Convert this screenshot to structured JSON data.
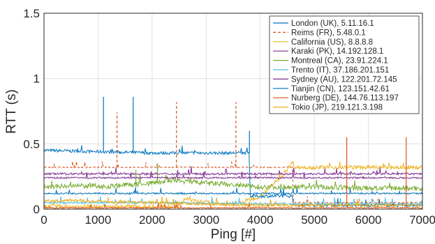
{
  "chart_data": {
    "type": "line",
    "xlabel": "Ping [#]",
    "ylabel": "RTT (s)",
    "xlim": [
      0,
      7000
    ],
    "ylim": [
      0,
      1.5
    ],
    "x_ticks": [
      "0",
      "1000",
      "2000",
      "3000",
      "4000",
      "5000",
      "6000",
      "7000"
    ],
    "y_ticks": [
      "0",
      "0.5",
      "1",
      "1.5"
    ],
    "grid": true,
    "legend_position": "top-right",
    "series": [
      {
        "name": "London (UK), 5.11.16.1",
        "color": "#0072bd",
        "dash": "solid",
        "points": [
          [
            0,
            0.45
          ],
          [
            1000,
            0.44
          ],
          [
            2000,
            0.43
          ],
          [
            3000,
            0.43
          ],
          [
            3800,
            0.43
          ],
          [
            3810,
            0.1
          ],
          [
            4600,
            0.1
          ],
          [
            4610,
            0.03
          ],
          [
            7000,
            0.03
          ]
        ],
        "spikes": [
          [
            1100,
            0.86
          ],
          [
            1650,
            0.86
          ],
          [
            3800,
            0.6
          ]
        ]
      },
      {
        "name": "Reims (FR), 5.48.0.1",
        "color": "#d95319",
        "dash": "dashed",
        "points": [
          [
            0,
            0.32
          ],
          [
            2000,
            0.32
          ],
          [
            4000,
            0.32
          ],
          [
            4600,
            0.32
          ],
          [
            4610,
            0.05
          ],
          [
            7000,
            0.05
          ]
        ],
        "spikes": [
          [
            1350,
            0.74
          ],
          [
            2450,
            0.82
          ],
          [
            3550,
            0.82
          ]
        ]
      },
      {
        "name": "California (US), 8.8.8.8",
        "color": "#edb120",
        "dash": "solid",
        "points": [
          [
            0,
            0.02
          ],
          [
            2500,
            0.02
          ],
          [
            2600,
            0.08
          ],
          [
            2800,
            0.06
          ],
          [
            3500,
            0.03
          ],
          [
            4000,
            0.1
          ],
          [
            4400,
            0.25
          ],
          [
            4600,
            0.36
          ],
          [
            4650,
            0.32
          ],
          [
            7000,
            0.32
          ]
        ],
        "spikes": []
      },
      {
        "name": "Karaki (PK), 14.192.128.1",
        "color": "#7e2f8e",
        "dash": "solid",
        "points": [
          [
            0,
            0.27
          ],
          [
            2000,
            0.27
          ],
          [
            4000,
            0.27
          ],
          [
            6000,
            0.27
          ],
          [
            7000,
            0.27
          ]
        ],
        "spikes": []
      },
      {
        "name": "Montreal (CA), 23.91.224.1",
        "color": "#77ac30",
        "dash": "solid",
        "points": [
          [
            0,
            0.17
          ],
          [
            900,
            0.18
          ],
          [
            1000,
            0.17
          ],
          [
            2000,
            0.2
          ],
          [
            2400,
            0.22
          ],
          [
            3000,
            0.2
          ],
          [
            4000,
            0.17
          ],
          [
            5000,
            0.17
          ],
          [
            6000,
            0.16
          ],
          [
            7000,
            0.16
          ]
        ],
        "spikes": [
          [
            1700,
            0.3
          ],
          [
            2100,
            0.35
          ]
        ]
      },
      {
        "name": "Trento (IT), 37.186.201.151",
        "color": "#4dbeee",
        "dash": "solid",
        "points": [
          [
            0,
            0.05
          ],
          [
            2000,
            0.05
          ],
          [
            4000,
            0.04
          ],
          [
            7000,
            0.04
          ]
        ],
        "spikes": []
      },
      {
        "name": "Sydney (AU), 122.201.72.145",
        "color": "#7e2f8e",
        "dash": "solid",
        "points": [
          [
            0,
            0.24
          ],
          [
            2000,
            0.24
          ],
          [
            4000,
            0.24
          ],
          [
            7000,
            0.24
          ]
        ],
        "spikes": []
      },
      {
        "name": "Tianjin (CN), 123.151.42.61",
        "color": "#0072bd",
        "dash": "solid",
        "points": [
          [
            0,
            0.12
          ],
          [
            2000,
            0.12
          ],
          [
            4000,
            0.12
          ],
          [
            7000,
            0.12
          ]
        ],
        "spikes": []
      },
      {
        "name": "Nurberg (DE), 144.76.113.197",
        "color": "#d95319",
        "dash": "solid",
        "points": [
          [
            0,
            0.01
          ],
          [
            3500,
            0.01
          ],
          [
            7000,
            0.01
          ]
        ],
        "spikes": [
          [
            5600,
            0.55
          ],
          [
            6700,
            0.55
          ]
        ]
      },
      {
        "name": "Tokio (JP), 219.121.3.198",
        "color": "#edb120",
        "dash": "solid",
        "points": [
          [
            0,
            0.06
          ],
          [
            500,
            0.07
          ],
          [
            1000,
            0.06
          ],
          [
            2000,
            0.05
          ],
          [
            3000,
            0.04
          ],
          [
            4000,
            0.03
          ],
          [
            5000,
            0.03
          ],
          [
            7000,
            0.03
          ]
        ],
        "spikes": []
      }
    ]
  }
}
